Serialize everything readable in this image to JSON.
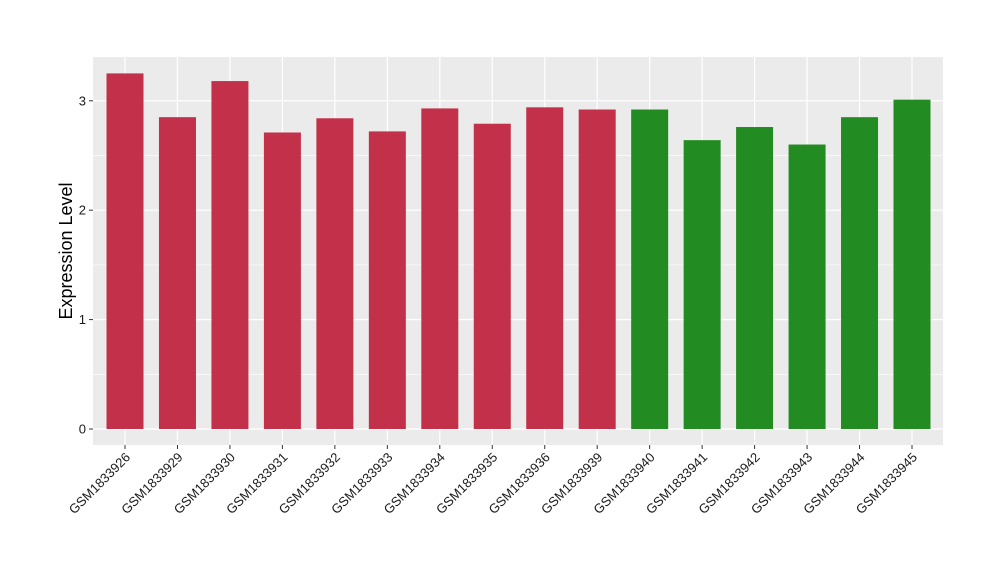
{
  "chart_data": {
    "type": "bar",
    "title": "",
    "xlabel": "",
    "ylabel": "Expression Level",
    "ylim": [
      0,
      3.4
    ],
    "yticks": [
      0,
      1,
      2,
      3
    ],
    "grid": true,
    "legend": "none",
    "categories": [
      "GSM1833926",
      "GSM1833929",
      "GSM1833930",
      "GSM1833931",
      "GSM1833932",
      "GSM1833933",
      "GSM1833934",
      "GSM1833935",
      "GSM1833936",
      "GSM1833939",
      "GSM1833940",
      "GSM1833941",
      "GSM1833942",
      "GSM1833943",
      "GSM1833944",
      "GSM1833945"
    ],
    "values": [
      3.25,
      2.85,
      3.18,
      2.71,
      2.84,
      2.72,
      2.93,
      2.79,
      2.94,
      2.92,
      2.92,
      2.64,
      2.76,
      2.6,
      2.85,
      3.01
    ],
    "group_colors": [
      "#C3304A",
      "#C3304A",
      "#C3304A",
      "#C3304A",
      "#C3304A",
      "#C3304A",
      "#C3304A",
      "#C3304A",
      "#C3304A",
      "#C3304A",
      "#228B22",
      "#228B22",
      "#228B22",
      "#228B22",
      "#228B22",
      "#228B22"
    ],
    "panel_color": "#EBEBEB",
    "grid_color": "#FFFFFF"
  }
}
